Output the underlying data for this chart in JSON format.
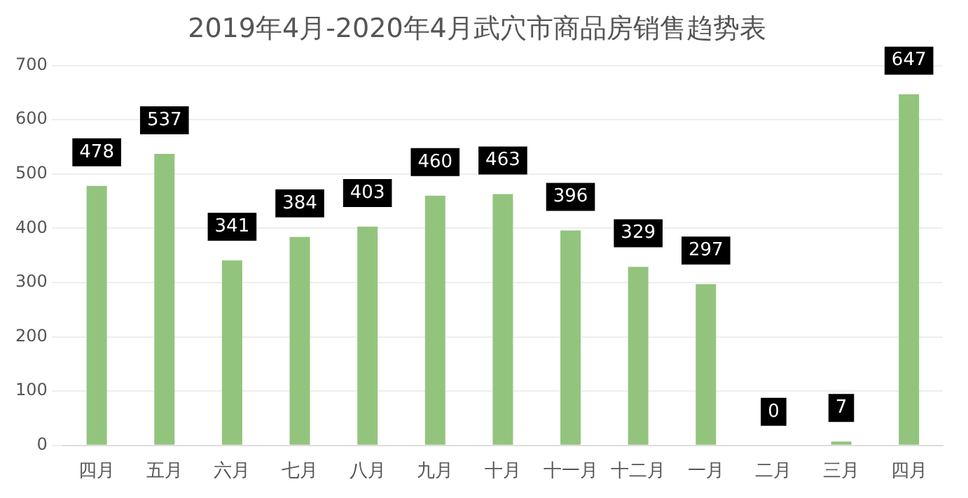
{
  "chart_data": {
    "type": "bar",
    "title": "2019年4月-2020年4月武穴市商品房销售趋势表",
    "categories": [
      "四月",
      "五月",
      "六月",
      "七月",
      "八月",
      "九月",
      "十月",
      "十一月",
      "十二月",
      "一月",
      "二月",
      "三月",
      "四月"
    ],
    "values": [
      478,
      537,
      341,
      384,
      403,
      460,
      463,
      396,
      329,
      297,
      0,
      7,
      647
    ],
    "color": "#93c47d",
    "ylim": [
      0,
      700
    ],
    "yticks": [
      0,
      100,
      200,
      300,
      400,
      500,
      600,
      700
    ],
    "grid": "y",
    "data_labels": true,
    "legend": false
  }
}
